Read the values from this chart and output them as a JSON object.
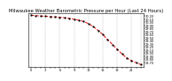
{
  "title": "Milwaukee Weather Barometric Pressure per Hour (Last 24 Hours)",
  "hours": [
    0,
    1,
    2,
    3,
    4,
    5,
    6,
    7,
    8,
    9,
    10,
    11,
    12,
    13,
    14,
    15,
    16,
    17,
    18,
    19,
    20,
    21,
    22,
    23
  ],
  "pressure": [
    30.23,
    30.22,
    30.21,
    30.2,
    30.19,
    30.18,
    30.17,
    30.15,
    30.13,
    30.1,
    30.07,
    30.03,
    29.96,
    29.86,
    29.74,
    29.6,
    29.44,
    29.28,
    29.12,
    28.97,
    28.84,
    28.75,
    28.68,
    28.62
  ],
  "ylim_min": 28.55,
  "ylim_max": 30.3,
  "line_color": "#dd0000",
  "marker_color": "#000000",
  "grid_color": "#bbbbbb",
  "bg_color": "#ffffff",
  "title_fontsize": 3.8,
  "tick_fontsize": 2.5,
  "ytick_values": [
    30.2,
    30.1,
    30.0,
    29.9,
    29.8,
    29.7,
    29.6,
    29.5,
    29.4,
    29.3,
    29.2,
    29.1,
    29.0,
    28.9,
    28.8,
    28.7
  ],
  "ytick_labels": [
    "30.20",
    "30.10",
    "30.00",
    "29.90",
    "29.80",
    "29.70",
    "29.60",
    "29.50",
    "29.40",
    "29.30",
    "29.20",
    "29.10",
    "29.00",
    "28.90",
    "28.80",
    "28.70"
  ],
  "grid_x": [
    0,
    3,
    6,
    9,
    12,
    15,
    18,
    21,
    23
  ]
}
